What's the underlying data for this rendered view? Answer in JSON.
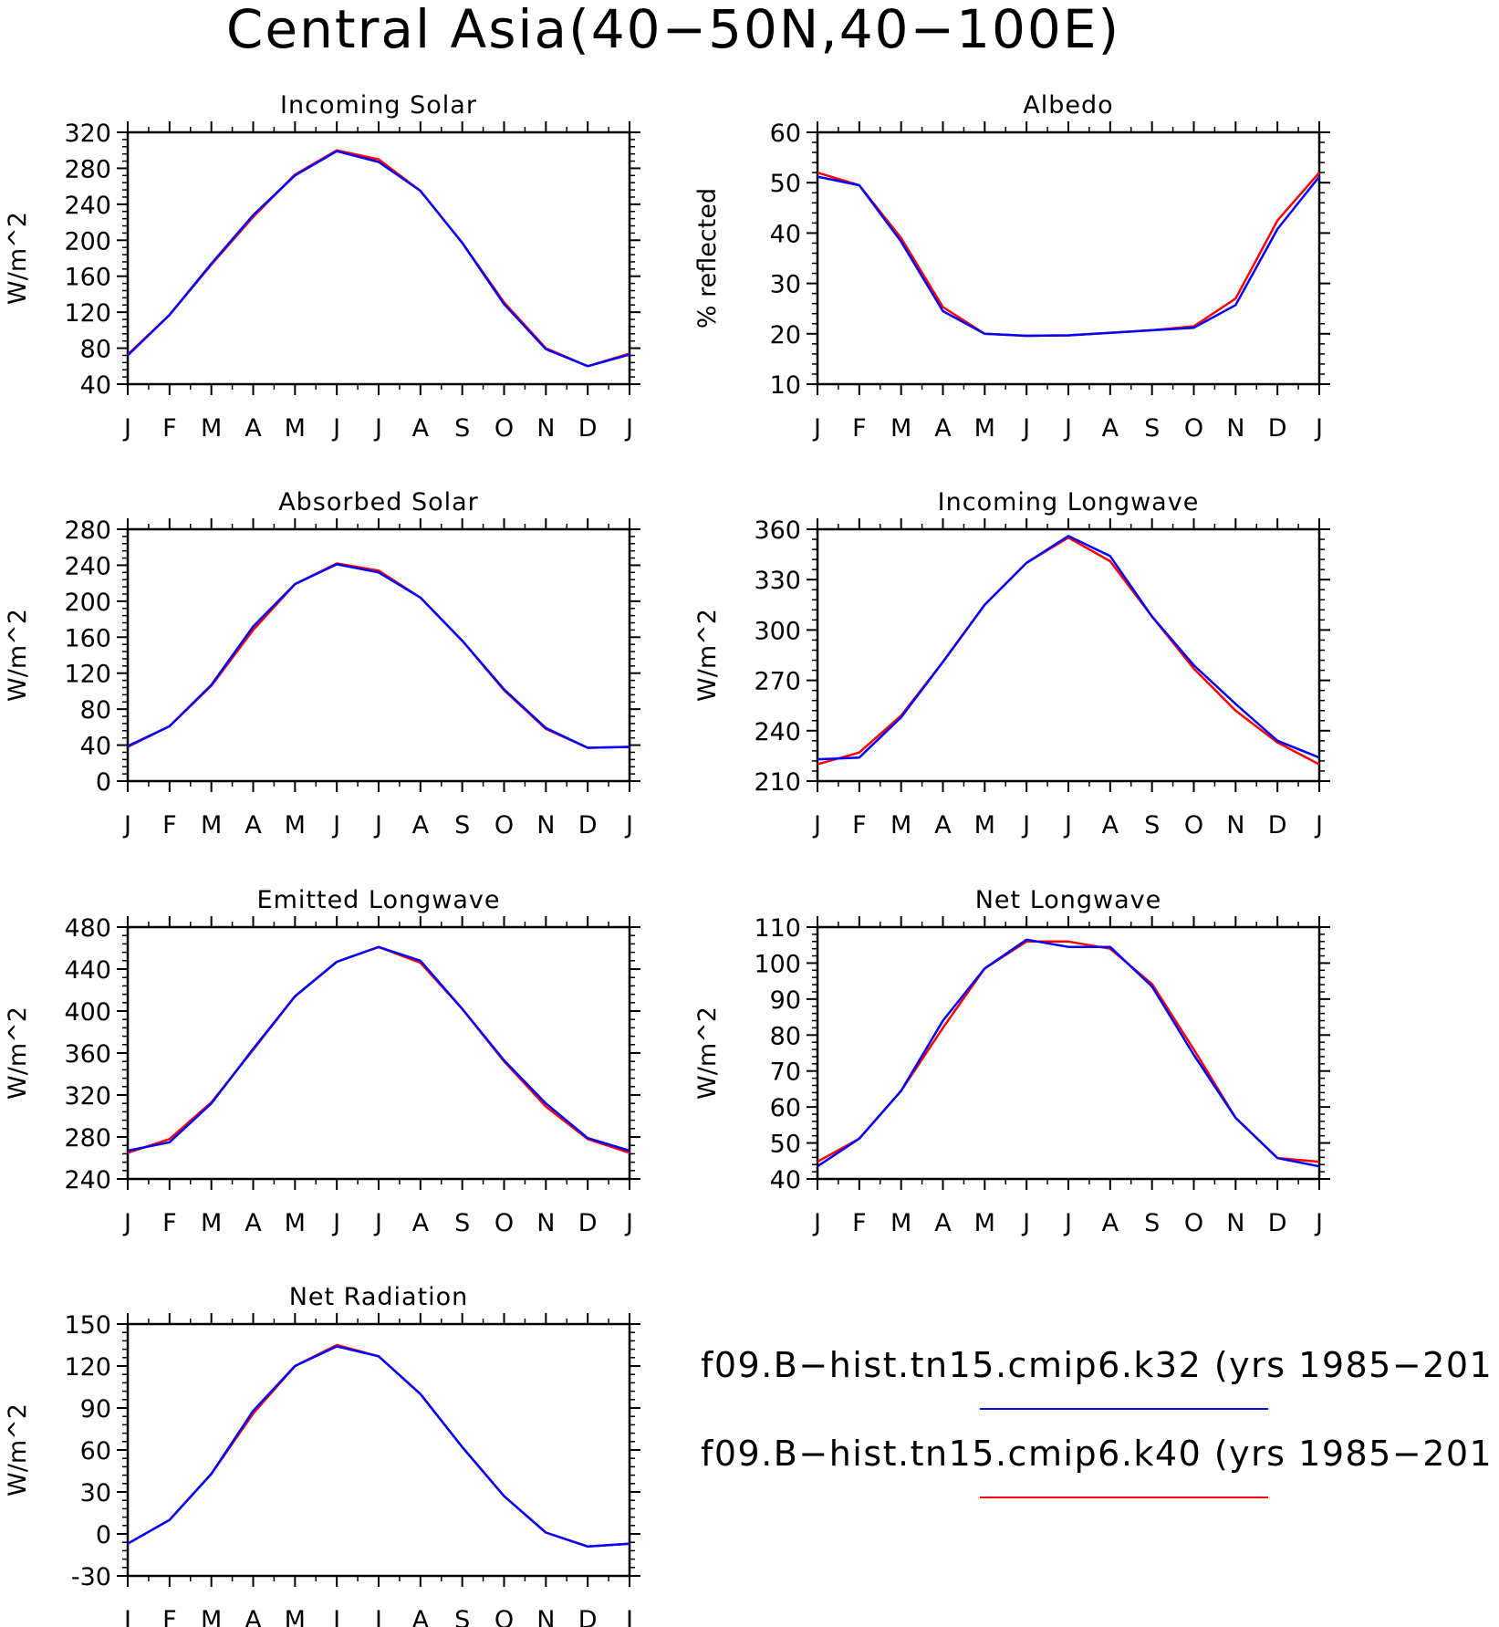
{
  "figure": {
    "title": "Central Asia(40−50N,40−100E)",
    "months": [
      "J",
      "F",
      "M",
      "A",
      "M",
      "J",
      "J",
      "A",
      "S",
      "O",
      "N",
      "D",
      "J"
    ]
  },
  "legend": {
    "entries": [
      {
        "label": "f09.B−hist.tn15.cmip6.k32 (yrs 1985−201",
        "color": "#0000ff"
      },
      {
        "label": "f09.B−hist.tn15.cmip6.k40 (yrs 1985−201",
        "color": "#ff0000"
      }
    ]
  },
  "colors": {
    "k32": "#0000ff",
    "k40": "#ff0000",
    "axis": "#000000"
  },
  "chart_data": [
    {
      "type": "line",
      "title": "Incoming Solar",
      "ylabel": "W/m^2",
      "ylim": [
        40,
        320
      ],
      "yticks": [
        40,
        80,
        120,
        160,
        200,
        240,
        280,
        320
      ],
      "x": [
        "J",
        "F",
        "M",
        "A",
        "M",
        "J",
        "J",
        "A",
        "S",
        "O",
        "N",
        "D",
        "J"
      ],
      "series": [
        {
          "name": "f09.B−hist.tn15.cmip6.k32 (yrs 1985−201",
          "color": "#0000ff",
          "values": [
            72,
            117,
            174,
            228,
            272,
            299,
            287,
            255,
            197,
            129,
            79,
            60,
            73
          ]
        },
        {
          "name": "f09.B−hist.tn15.cmip6.k40 (yrs 1985−201",
          "color": "#ff0000",
          "values": [
            73,
            117,
            173,
            226,
            273,
            300,
            290,
            255,
            197,
            131,
            80,
            60,
            74
          ]
        }
      ]
    },
    {
      "type": "line",
      "title": "Albedo",
      "ylabel": "% reflected",
      "ylim": [
        10,
        60
      ],
      "yticks": [
        10,
        20,
        30,
        40,
        50,
        60
      ],
      "x": [
        "J",
        "F",
        "M",
        "A",
        "M",
        "J",
        "J",
        "A",
        "S",
        "O",
        "N",
        "D",
        "J"
      ],
      "series": [
        {
          "name": "f09.B−hist.tn15.cmip6.k32 (yrs 1985−201",
          "color": "#0000ff",
          "values": [
            51.2,
            49.5,
            38.3,
            24.5,
            20.0,
            19.6,
            19.7,
            20.2,
            20.7,
            21.2,
            25.7,
            40.8,
            51.2
          ]
        },
        {
          "name": "f09.B−hist.tn15.cmip6.k40 (yrs 1985−201",
          "color": "#ff0000",
          "values": [
            52.0,
            49.5,
            39.0,
            25.3,
            20.0,
            19.6,
            19.7,
            20.2,
            20.7,
            21.5,
            27.0,
            42.5,
            52.0
          ]
        }
      ]
    },
    {
      "type": "line",
      "title": "Absorbed Solar",
      "ylabel": "W/m^2",
      "ylim": [
        0,
        280
      ],
      "yticks": [
        0,
        40,
        80,
        120,
        160,
        200,
        240,
        280
      ],
      "x": [
        "J",
        "F",
        "M",
        "A",
        "M",
        "J",
        "J",
        "A",
        "S",
        "O",
        "N",
        "D",
        "J"
      ],
      "series": [
        {
          "name": "f09.B−hist.tn15.cmip6.k32 (yrs 1985−201",
          "color": "#0000ff",
          "values": [
            39,
            61,
            107,
            172,
            219,
            241,
            232,
            204,
            156,
            102,
            59,
            37,
            38
          ]
        },
        {
          "name": "f09.B−hist.tn15.cmip6.k40 (yrs 1985−201",
          "color": "#ff0000",
          "values": [
            38,
            61,
            106,
            168,
            219,
            242,
            234,
            204,
            156,
            101,
            58,
            37,
            38
          ]
        }
      ]
    },
    {
      "type": "line",
      "title": "Incoming Longwave",
      "ylabel": "W/m^2",
      "ylim": [
        210,
        360
      ],
      "yticks": [
        210,
        240,
        270,
        300,
        330,
        360
      ],
      "x": [
        "J",
        "F",
        "M",
        "A",
        "M",
        "J",
        "J",
        "A",
        "S",
        "O",
        "N",
        "D",
        "J"
      ],
      "series": [
        {
          "name": "f09.B−hist.tn15.cmip6.k32 (yrs 1985−201",
          "color": "#0000ff",
          "values": [
            223,
            224,
            248,
            281,
            315,
            340,
            356,
            344,
            308,
            279,
            256,
            234,
            224
          ]
        },
        {
          "name": "f09.B−hist.tn15.cmip6.k40 (yrs 1985−201",
          "color": "#ff0000",
          "values": [
            220,
            227,
            249,
            281,
            315,
            340,
            355,
            341,
            308,
            277,
            252,
            233,
            220
          ]
        }
      ]
    },
    {
      "type": "line",
      "title": "Emitted Longwave",
      "ylabel": "W/m^2",
      "ylim": [
        240,
        480
      ],
      "yticks": [
        240,
        280,
        320,
        360,
        400,
        440,
        480
      ],
      "x": [
        "J",
        "F",
        "M",
        "A",
        "M",
        "J",
        "J",
        "A",
        "S",
        "O",
        "N",
        "D",
        "J"
      ],
      "series": [
        {
          "name": "f09.B−hist.tn15.cmip6.k32 (yrs 1985−201",
          "color": "#0000ff",
          "values": [
            267,
            275,
            312,
            364,
            414,
            447,
            461,
            448,
            402,
            353,
            312,
            279,
            267
          ]
        },
        {
          "name": "f09.B−hist.tn15.cmip6.k40 (yrs 1985−201",
          "color": "#ff0000",
          "values": [
            265,
            278,
            313,
            363,
            414,
            447,
            461,
            446,
            402,
            352,
            309,
            278,
            265
          ]
        }
      ]
    },
    {
      "type": "line",
      "title": "Net Longwave",
      "ylabel": "W/m^2",
      "ylim": [
        40,
        110
      ],
      "yticks": [
        40,
        50,
        60,
        70,
        80,
        90,
        100,
        110
      ],
      "x": [
        "J",
        "F",
        "M",
        "A",
        "M",
        "J",
        "J",
        "A",
        "S",
        "O",
        "N",
        "D",
        "J"
      ],
      "series": [
        {
          "name": "f09.B−hist.tn15.cmip6.k32 (yrs 1985−201",
          "color": "#0000ff",
          "values": [
            43.5,
            51.2,
            64.5,
            84.0,
            98.5,
            106.5,
            104.5,
            104.5,
            93.5,
            74.5,
            57.0,
            45.8,
            43.5
          ]
        },
        {
          "name": "f09.B−hist.tn15.cmip6.k40 (yrs 1985−201",
          "color": "#ff0000",
          "values": [
            44.8,
            51.2,
            64.5,
            82.0,
            98.5,
            106.0,
            106.0,
            104.0,
            94.2,
            76.0,
            57.0,
            45.8,
            44.8
          ]
        }
      ]
    },
    {
      "type": "line",
      "title": "Net Radiation",
      "ylabel": "W/m^2",
      "ylim": [
        -30,
        150
      ],
      "yticks": [
        -30,
        0,
        30,
        60,
        90,
        120,
        150
      ],
      "x": [
        "J",
        "F",
        "M",
        "A",
        "M",
        "J",
        "J",
        "A",
        "S",
        "O",
        "N",
        "D",
        "J"
      ],
      "series": [
        {
          "name": "f09.B−hist.tn15.cmip6.k32 (yrs 1985−201",
          "color": "#0000ff",
          "values": [
            -7,
            10,
            43,
            88,
            120,
            134,
            127,
            100,
            62,
            27,
            1,
            -9,
            -7
          ]
        },
        {
          "name": "f09.B−hist.tn15.cmip6.k40 (yrs 1985−201",
          "color": "#ff0000",
          "values": [
            -7,
            10,
            43,
            86,
            120,
            135,
            127,
            100,
            62,
            27,
            1,
            -9,
            -7
          ]
        }
      ]
    }
  ]
}
